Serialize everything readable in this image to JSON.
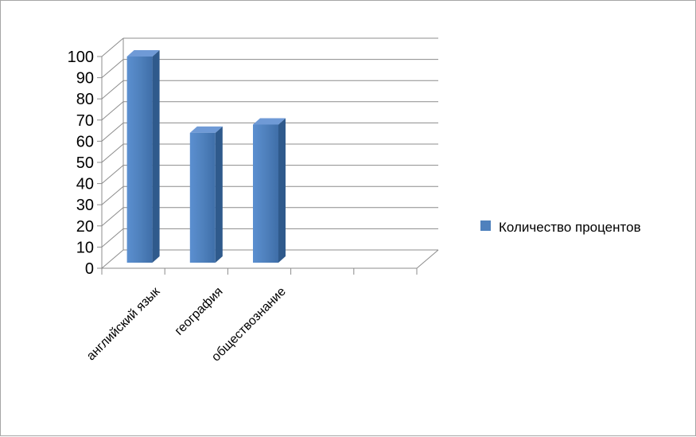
{
  "chart_data": {
    "type": "bar",
    "categories": [
      "английский язык",
      "география",
      "обществознание",
      "",
      ""
    ],
    "series": [
      {
        "name": "Количество процентов",
        "values": [
          100,
          63,
          67,
          null,
          null
        ],
        "color": "#4f81bd"
      }
    ],
    "ylim": [
      0,
      100
    ],
    "yticks": [
      0,
      10,
      20,
      30,
      40,
      50,
      60,
      70,
      80,
      90,
      100
    ],
    "grid": true,
    "legend": "right",
    "style": "3d-column"
  }
}
